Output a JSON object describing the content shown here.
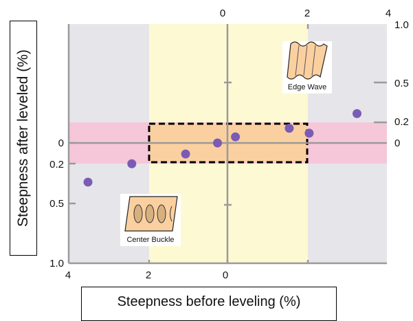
{
  "chart_data": {
    "type": "scatter",
    "xlabel": "Steepness before leveling (%)",
    "ylabel": "Steepness after leveled (%)",
    "bottom_x_ticks": [
      "4",
      "2",
      "0"
    ],
    "top_x_ticks": [
      "0",
      "2",
      "4"
    ],
    "left_y_ticks": [
      "0",
      "0.2",
      "0.5",
      "1.0"
    ],
    "right_y_ticks": [
      "1.0",
      "0.5",
      "0.2",
      "0"
    ],
    "annotations": {
      "edge_wave": "Edge Wave",
      "center_buckle": "Center Buckle"
    },
    "points": [
      {
        "x": -3.5,
        "y": -0.32
      },
      {
        "x": -2.4,
        "y": -0.17
      },
      {
        "x": -1.05,
        "y": -0.09
      },
      {
        "x": -0.25,
        "y": 0.0
      },
      {
        "x": 0.2,
        "y": 0.05
      },
      {
        "x": 1.55,
        "y": 0.12
      },
      {
        "x": 2.05,
        "y": 0.08
      },
      {
        "x": 3.25,
        "y": 0.24
      }
    ],
    "colors": {
      "point": "#7a5cb4",
      "outer_region": "#e6e6ea",
      "center_band": "#fdf9d2",
      "tolerance_band": "#f6c6d9",
      "target_box": "#fbd0a0",
      "axis": "#9a9a9a"
    }
  }
}
